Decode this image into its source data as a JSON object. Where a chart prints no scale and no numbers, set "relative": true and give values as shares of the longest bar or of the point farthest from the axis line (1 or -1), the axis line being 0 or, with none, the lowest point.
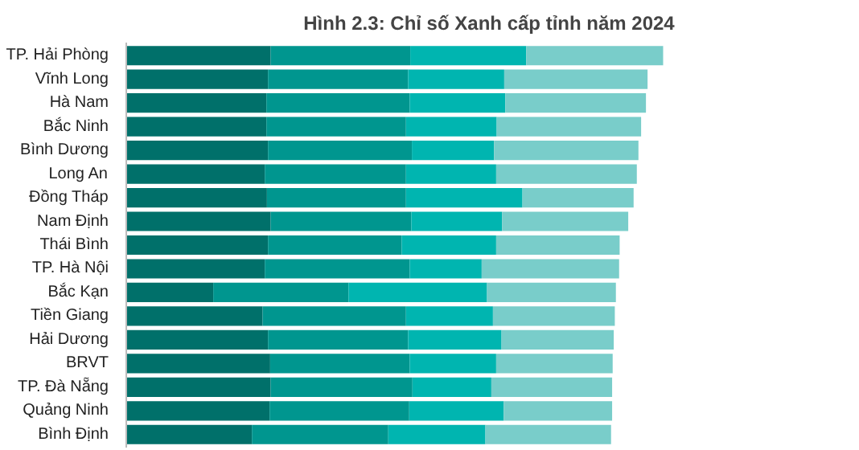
{
  "chart_data": {
    "type": "bar",
    "title": "Hình 2.3: Chỉ số Xanh cấp tỉnh năm 2024",
    "orientation": "horizontal",
    "stacked": true,
    "relative": true,
    "categories": [
      "TP. Hải Phòng",
      "Vĩnh Long",
      "Hà Nam",
      "Bắc Ninh",
      "Bình Dương",
      "Long An",
      "Đồng Tháp",
      "Nam Định",
      "Thái Bình",
      "TP. Hà Nội",
      "Bắc Kạn",
      "Tiền Giang",
      "Hải Dương",
      "BRVT",
      "TP. Đà Nẵng",
      "Quảng Ninh",
      "Bình Định"
    ],
    "series": [
      {
        "color": "#00706a",
        "values": [
          0.269,
          0.264,
          0.261,
          0.261,
          0.264,
          0.258,
          0.262,
          0.269,
          0.264,
          0.258,
          0.162,
          0.254,
          0.264,
          0.268,
          0.269,
          0.267,
          0.234
        ]
      },
      {
        "color": "#00968f",
        "values": [
          0.26,
          0.261,
          0.267,
          0.26,
          0.268,
          0.263,
          0.259,
          0.262,
          0.249,
          0.27,
          0.252,
          0.267,
          0.261,
          0.26,
          0.264,
          0.26,
          0.254
        ]
      },
      {
        "color": "#00b5b0",
        "values": [
          0.216,
          0.179,
          0.178,
          0.169,
          0.153,
          0.168,
          0.217,
          0.169,
          0.176,
          0.134,
          0.258,
          0.162,
          0.174,
          0.161,
          0.147,
          0.176,
          0.181
        ]
      },
      {
        "color": "#79cdca",
        "values": [
          0.255,
          0.267,
          0.262,
          0.269,
          0.269,
          0.262,
          0.207,
          0.235,
          0.23,
          0.256,
          0.24,
          0.227,
          0.209,
          0.217,
          0.225,
          0.202,
          0.234
        ]
      }
    ]
  }
}
